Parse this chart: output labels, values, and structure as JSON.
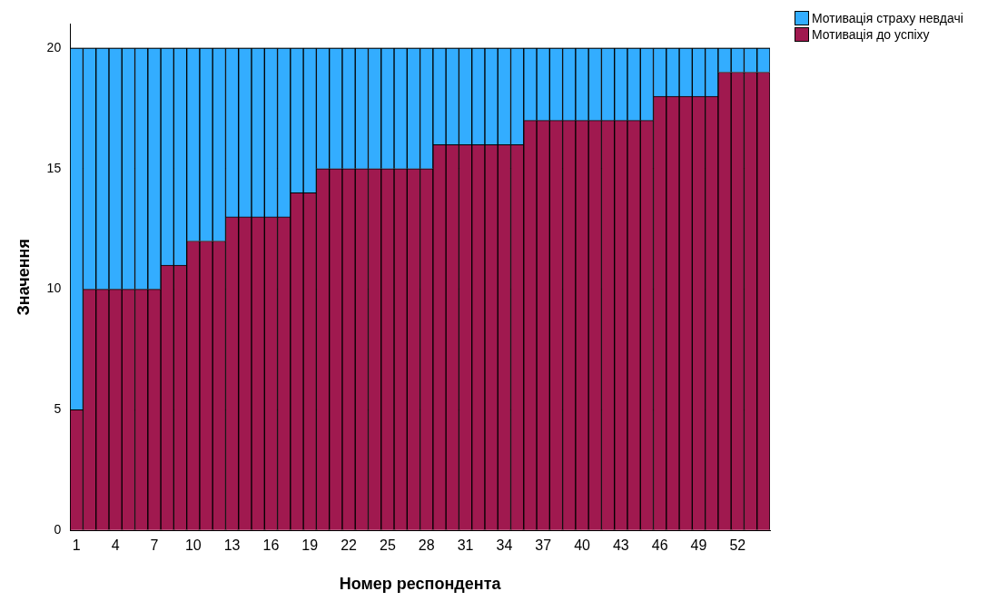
{
  "chart_data": {
    "type": "bar",
    "stacked": true,
    "xlabel": "Номер респондента",
    "ylabel": "Значення",
    "categories": [
      "1",
      null,
      null,
      "4",
      null,
      null,
      "7",
      null,
      null,
      "10",
      null,
      null,
      "13",
      null,
      null,
      "16",
      null,
      null,
      "19",
      null,
      null,
      "22",
      null,
      null,
      "25",
      null,
      null,
      "28",
      null,
      null,
      "31",
      null,
      null,
      "34",
      null,
      null,
      "37",
      null,
      null,
      "40",
      null,
      null,
      "43",
      null,
      null,
      "46",
      null,
      null,
      "49",
      null,
      null,
      "52",
      null,
      null
    ],
    "series": [
      {
        "name": "Мотивація до успіху",
        "color": "#a0194f",
        "values": [
          5,
          10,
          10,
          10,
          10,
          10,
          10,
          11,
          11,
          12,
          12,
          12,
          13,
          13,
          13,
          13,
          13,
          14,
          14,
          15,
          15,
          15,
          15,
          15,
          15,
          15,
          15,
          15,
          16,
          16,
          16,
          16,
          16,
          16,
          16,
          17,
          17,
          17,
          17,
          17,
          17,
          17,
          17,
          17,
          17,
          18,
          18,
          18,
          18,
          18,
          19,
          19,
          19,
          19
        ]
      },
      {
        "name": "Мотивація страху невдачі",
        "color": "#33adff",
        "values": [
          15,
          10,
          10,
          10,
          10,
          10,
          10,
          9,
          9,
          8,
          8,
          8,
          7,
          7,
          7,
          7,
          7,
          6,
          6,
          5,
          5,
          5,
          5,
          5,
          5,
          5,
          5,
          5,
          4,
          4,
          4,
          4,
          4,
          4,
          4,
          3,
          3,
          3,
          3,
          3,
          3,
          3,
          3,
          3,
          3,
          2,
          2,
          2,
          2,
          2,
          1,
          1,
          1,
          1
        ]
      }
    ],
    "ylim": [
      0,
      21
    ],
    "yticks": [
      0,
      5,
      10,
      15,
      20
    ],
    "grid": "y",
    "legend": "top right"
  }
}
